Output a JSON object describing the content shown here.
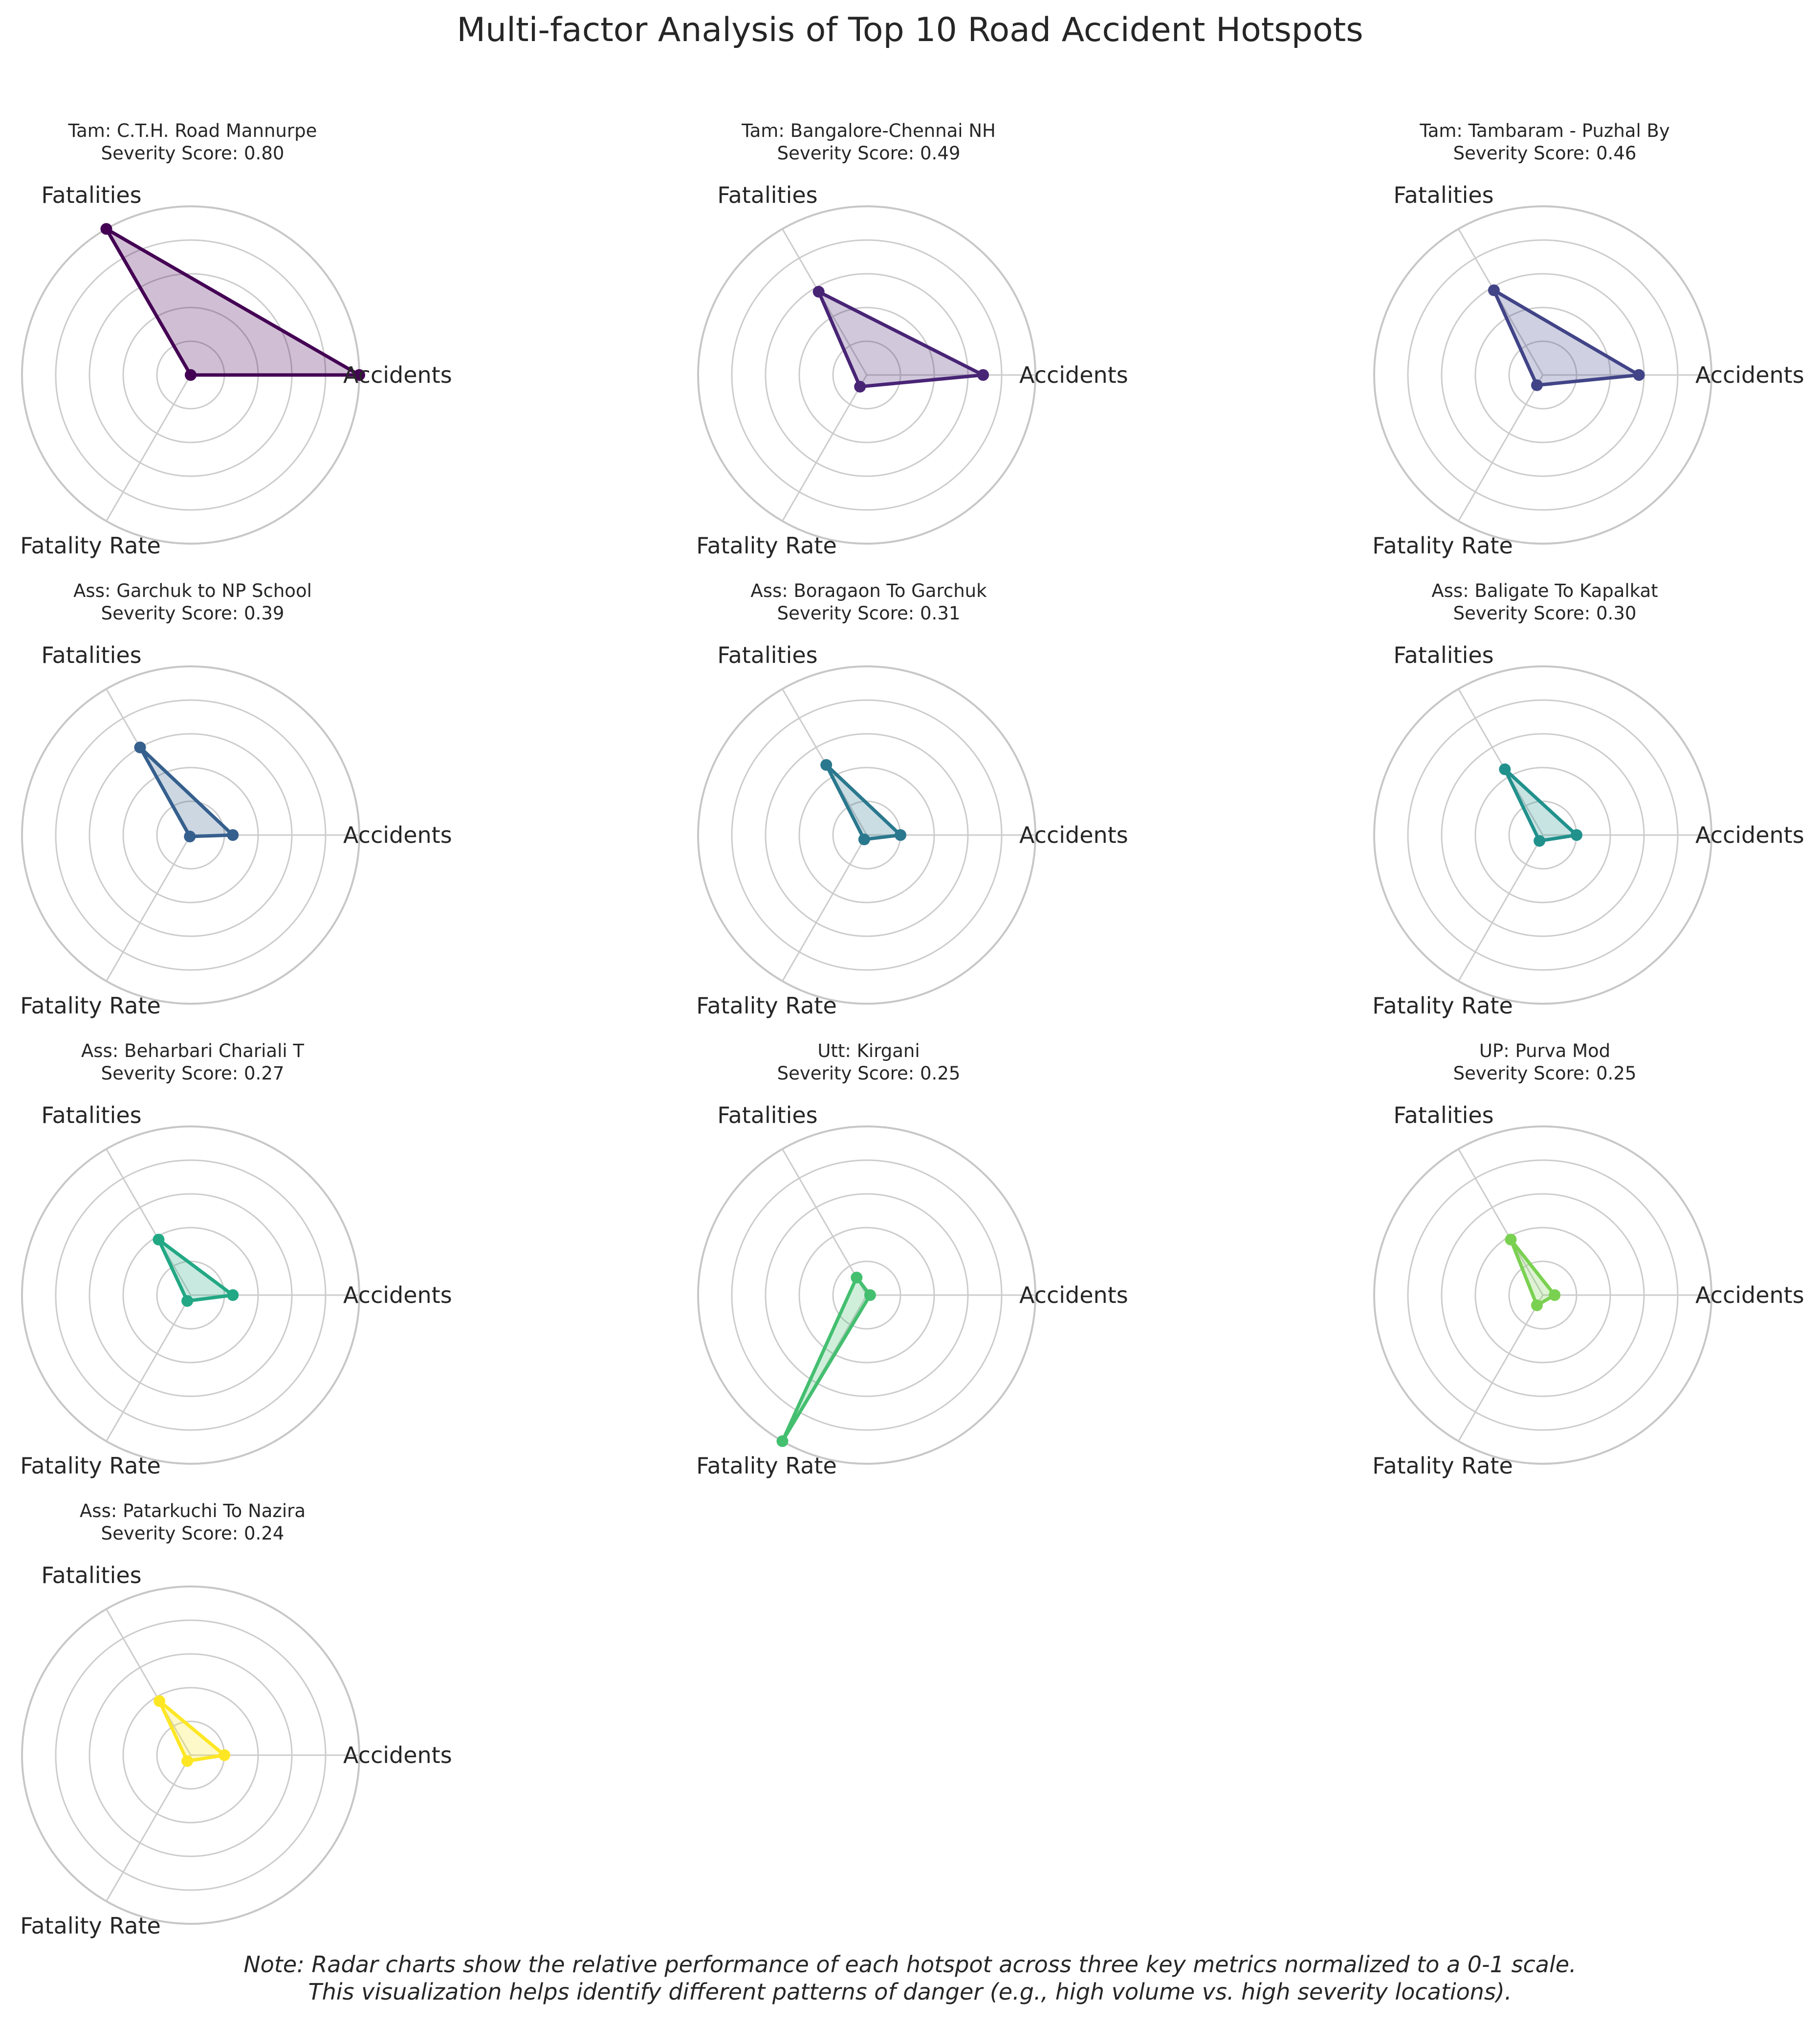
{
  "title": "Multi-factor Analysis of Top 10 Road Accident Hotspots",
  "footnote": [
    "Note: Radar charts show the relative performance of each hotspot across three key metrics normalized to a 0-1 scale.",
    "This visualization helps identify different patterns of danger (e.g., high volume vs. high severity locations)."
  ],
  "chart_data": {
    "type": "radar",
    "axes": [
      "Accidents",
      "Fatalities",
      "Fatality Rate"
    ],
    "rlim": [
      0,
      1
    ],
    "grid": true,
    "colormap": "viridis",
    "subplots": [
      {
        "location": "Tam: C.T.H. Road Mannurpe",
        "score_label": "Severity Score: 0.80",
        "color": "#440154",
        "values": [
          1.0,
          1.0,
          0.0
        ]
      },
      {
        "location": "Tam: Bangalore-Chennai NH",
        "score_label": "Severity Score: 0.49",
        "color": "#482475",
        "values": [
          0.69,
          0.57,
          0.08
        ]
      },
      {
        "location": "Tam: Tambaram - Puzhal By",
        "score_label": "Severity Score: 0.46",
        "color": "#414487",
        "values": [
          0.57,
          0.58,
          0.07
        ]
      },
      {
        "location": "Ass: Garchuk to NP School",
        "score_label": "Severity Score: 0.39",
        "color": "#355f8d",
        "values": [
          0.25,
          0.6,
          0.01
        ]
      },
      {
        "location": "Ass: Boragaon To Garchuk",
        "score_label": "Severity Score: 0.31",
        "color": "#2a788e",
        "values": [
          0.2,
          0.48,
          0.03
        ]
      },
      {
        "location": "Ass: Baligate To Kapalkat",
        "score_label": "Severity Score: 0.30",
        "color": "#21918c",
        "values": [
          0.2,
          0.45,
          0.04
        ]
      },
      {
        "location": "Ass: Beharbari Chariali T",
        "score_label": "Severity Score: 0.27",
        "color": "#22a884",
        "values": [
          0.25,
          0.38,
          0.04
        ]
      },
      {
        "location": "Utt: Kirgani",
        "score_label": "Severity Score: 0.25",
        "color": "#44bf70",
        "values": [
          0.02,
          0.12,
          1.0
        ]
      },
      {
        "location": "UP: Purva Mod",
        "score_label": "Severity Score: 0.25",
        "color": "#7ad151",
        "values": [
          0.07,
          0.38,
          0.07
        ]
      },
      {
        "location": "Ass: Patarkuchi To Nazira",
        "score_label": "Severity Score: 0.24",
        "color": "#fde725",
        "values": [
          0.2,
          0.37,
          0.04
        ]
      }
    ]
  }
}
